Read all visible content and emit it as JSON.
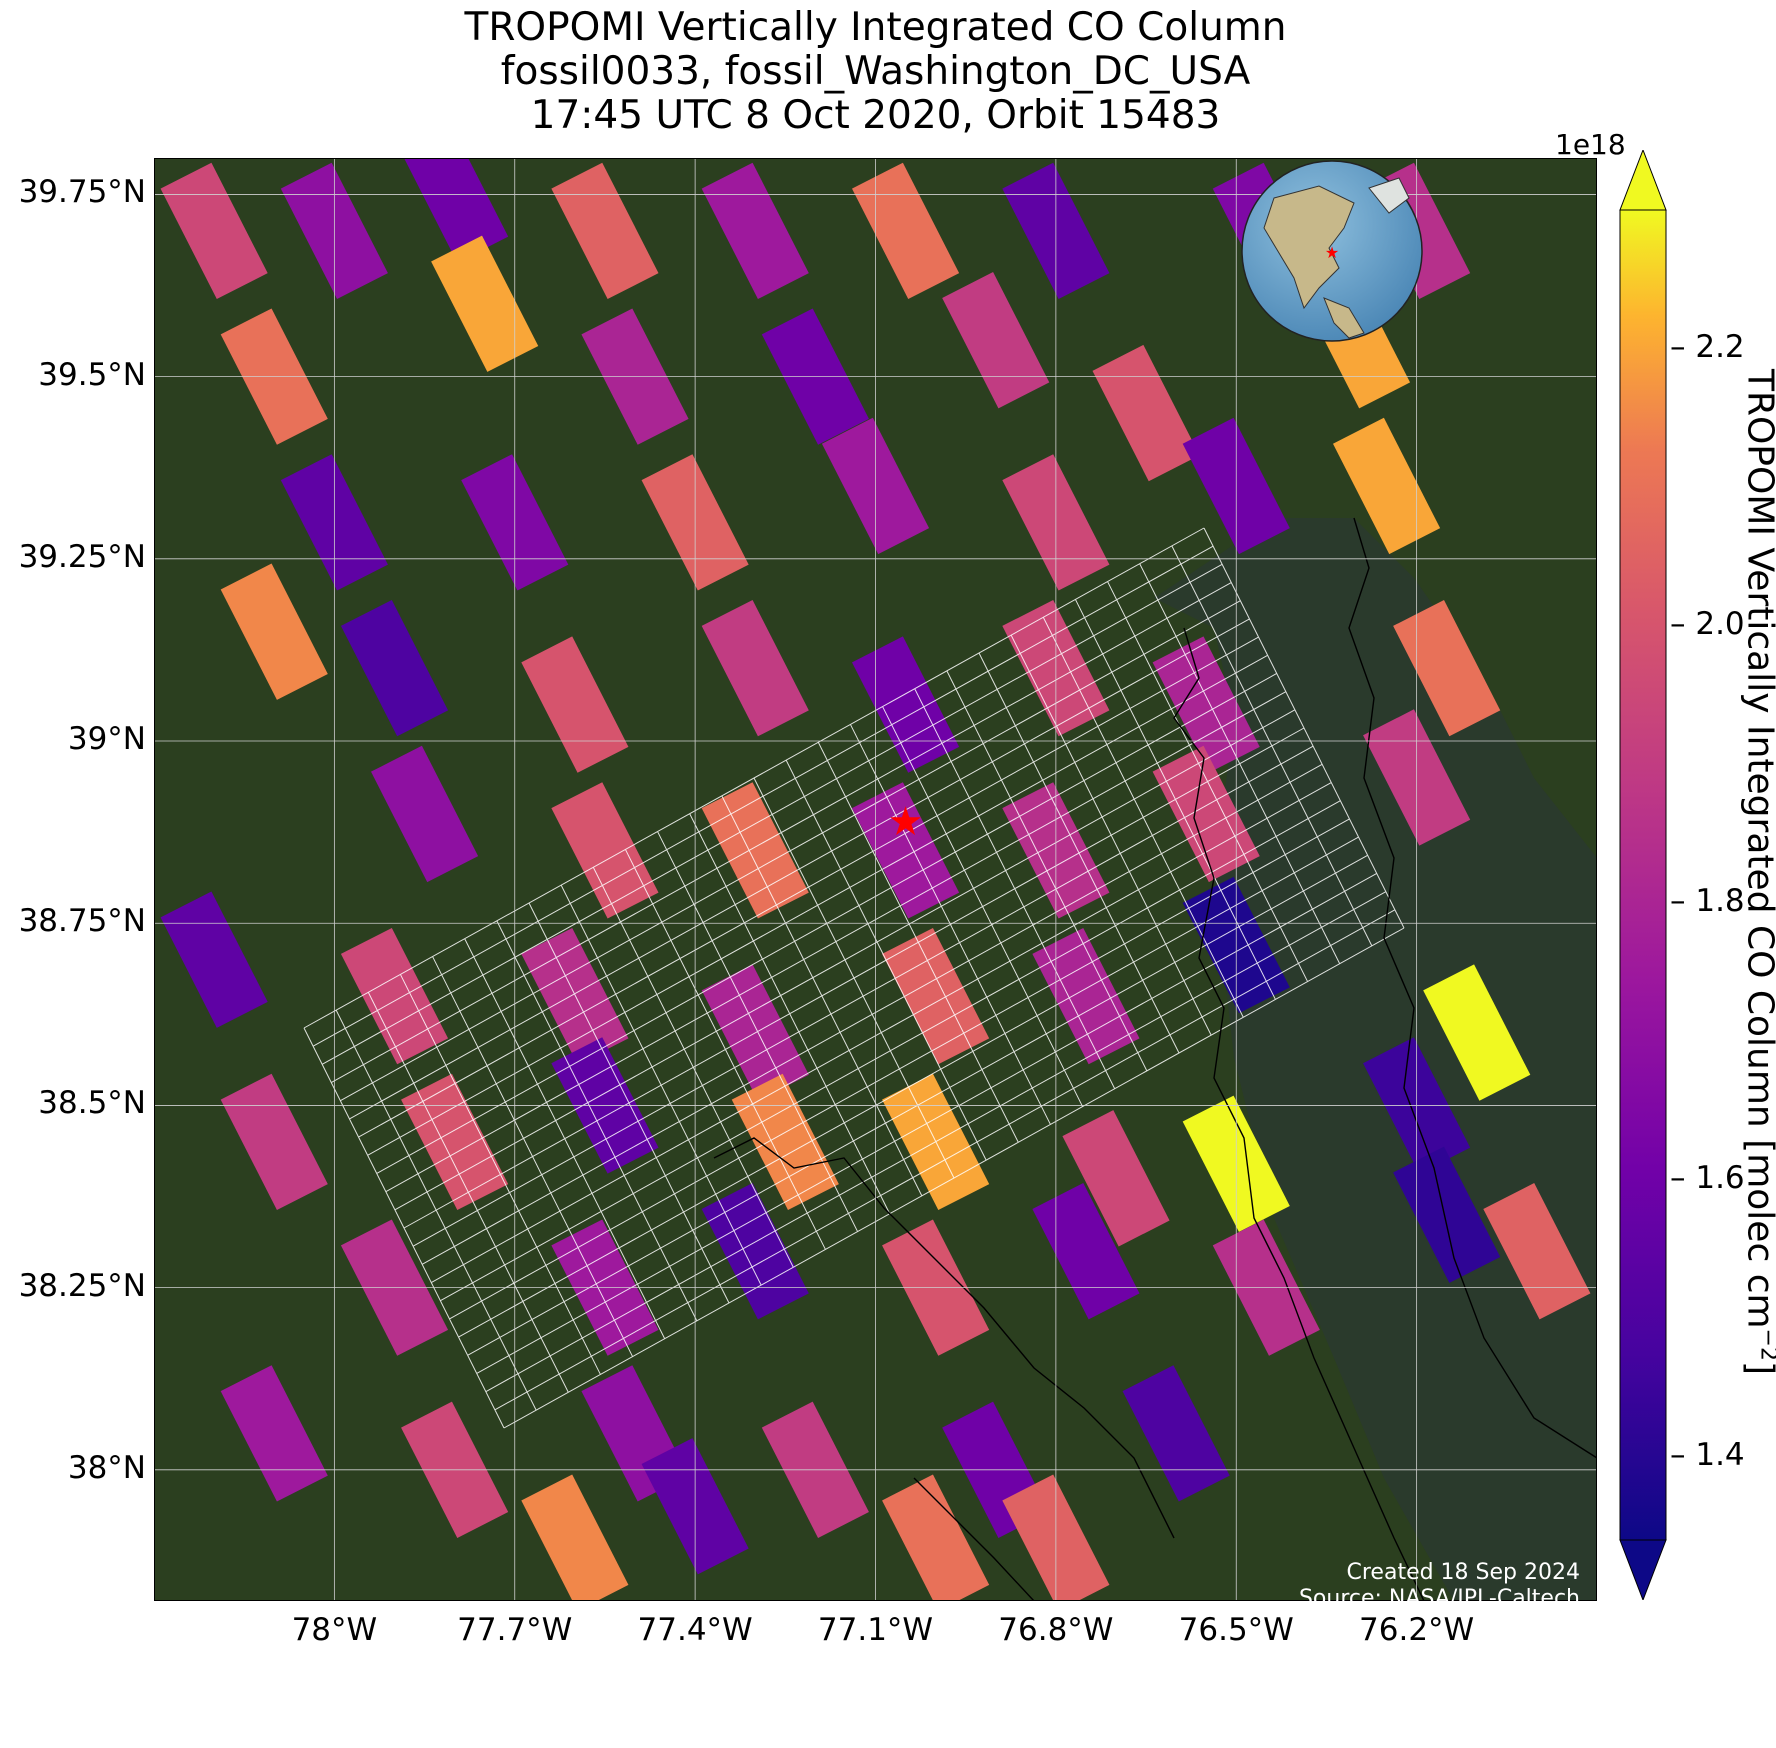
{
  "title": {
    "line1": "TROPOMI Vertically Integrated CO Column",
    "line2": "fossil0033, fossil_Washington_DC_USA",
    "line3": "17:45 UTC 8 Oct 2020, Orbit 15483"
  },
  "axes": {
    "lat_ticks": [
      {
        "value": 39.75,
        "label": "39.75°N"
      },
      {
        "value": 39.5,
        "label": "39.5°N"
      },
      {
        "value": 39.25,
        "label": "39.25°N"
      },
      {
        "value": 39.0,
        "label": "39°N"
      },
      {
        "value": 38.75,
        "label": "38.75°N"
      },
      {
        "value": 38.5,
        "label": "38.5°N"
      },
      {
        "value": 38.25,
        "label": "38.25°N"
      },
      {
        "value": 38.0,
        "label": "38°N"
      }
    ],
    "lon_ticks": [
      {
        "value": -78.0,
        "label": "78°W"
      },
      {
        "value": -77.7,
        "label": "77.7°W"
      },
      {
        "value": -77.4,
        "label": "77.4°W"
      },
      {
        "value": -77.1,
        "label": "77.1°W"
      },
      {
        "value": -76.8,
        "label": "76.8°W"
      },
      {
        "value": -76.5,
        "label": "76.5°W"
      },
      {
        "value": -76.2,
        "label": "76.2°W"
      }
    ],
    "lon_range": [
      -78.3,
      -75.9
    ],
    "lat_range": [
      37.82,
      39.8
    ],
    "grid": true
  },
  "site": {
    "name": "fossil_Washington_DC_USA",
    "lon": -77.05,
    "lat": 38.89,
    "marker_color": "#ff0000"
  },
  "colorbar": {
    "label": "TROPOMI Vertically Integrated CO Column [molec cm",
    "label_sup": "−2",
    "label_end": "]",
    "exponent": "1e18",
    "colormap": "plasma",
    "range": [
      1.34,
      2.3
    ],
    "ticks": [
      {
        "value": 1.4,
        "label": "1.4"
      },
      {
        "value": 1.6,
        "label": "1.6"
      },
      {
        "value": 1.8,
        "label": "1.8"
      },
      {
        "value": 2.0,
        "label": "2.0"
      },
      {
        "value": 2.2,
        "label": "2.2"
      }
    ],
    "extend": "both"
  },
  "credits": {
    "created": "Created 18 Sep 2024",
    "source": "Source: NASA/JPL-Caltech"
  },
  "inset_globe": {
    "marker_color": "#ff0000"
  },
  "colors": {
    "land": "#2b3f1f",
    "water": "#2b3b2b",
    "grid": "#d0d0d0",
    "coastline": "#000000",
    "target_grid": "#ffffff"
  },
  "chart_data": {
    "type": "heatmap",
    "title": "TROPOMI Vertically Integrated CO Column",
    "xlabel": "",
    "ylabel": "",
    "units": "molec cm^-2",
    "scale": "1e18",
    "value_range": [
      1.34,
      2.3
    ],
    "pixels": [
      {
        "lon": -78.2,
        "lat": 39.7,
        "value": 1.95
      },
      {
        "lon": -78.0,
        "lat": 39.7,
        "value": 1.7
      },
      {
        "lon": -77.8,
        "lat": 39.75,
        "value": 1.6
      },
      {
        "lon": -77.55,
        "lat": 39.7,
        "value": 2.05
      },
      {
        "lon": -77.3,
        "lat": 39.7,
        "value": 1.75
      },
      {
        "lon": -77.05,
        "lat": 39.7,
        "value": 2.1
      },
      {
        "lon": -76.8,
        "lat": 39.7,
        "value": 1.55
      },
      {
        "lon": -76.45,
        "lat": 39.7,
        "value": 1.65
      },
      {
        "lon": -76.2,
        "lat": 39.7,
        "value": 1.85
      },
      {
        "lon": -78.1,
        "lat": 39.5,
        "value": 2.1
      },
      {
        "lon": -77.75,
        "lat": 39.6,
        "value": 2.2
      },
      {
        "lon": -77.5,
        "lat": 39.5,
        "value": 1.8
      },
      {
        "lon": -77.2,
        "lat": 39.5,
        "value": 1.6
      },
      {
        "lon": -76.9,
        "lat": 39.55,
        "value": 1.9
      },
      {
        "lon": -76.65,
        "lat": 39.45,
        "value": 2.0
      },
      {
        "lon": -76.3,
        "lat": 39.55,
        "value": 2.2
      },
      {
        "lon": -78.0,
        "lat": 39.3,
        "value": 1.55
      },
      {
        "lon": -77.7,
        "lat": 39.3,
        "value": 1.65
      },
      {
        "lon": -77.4,
        "lat": 39.3,
        "value": 2.05
      },
      {
        "lon": -77.1,
        "lat": 39.35,
        "value": 1.75
      },
      {
        "lon": -76.8,
        "lat": 39.3,
        "value": 1.95
      },
      {
        "lon": -76.5,
        "lat": 39.35,
        "value": 1.6
      },
      {
        "lon": -76.25,
        "lat": 39.35,
        "value": 2.2
      },
      {
        "lon": -78.1,
        "lat": 39.15,
        "value": 2.15
      },
      {
        "lon": -77.9,
        "lat": 39.1,
        "value": 1.5
      },
      {
        "lon": -77.6,
        "lat": 39.05,
        "value": 2.0
      },
      {
        "lon": -77.3,
        "lat": 39.1,
        "value": 1.9
      },
      {
        "lon": -77.05,
        "lat": 39.05,
        "value": 1.6
      },
      {
        "lon": -76.8,
        "lat": 39.1,
        "value": 1.95
      },
      {
        "lon": -76.55,
        "lat": 39.05,
        "value": 1.8
      },
      {
        "lon": -76.15,
        "lat": 39.1,
        "value": 2.1
      },
      {
        "lon": -77.85,
        "lat": 38.9,
        "value": 1.7
      },
      {
        "lon": -77.55,
        "lat": 38.85,
        "value": 2.0
      },
      {
        "lon": -77.3,
        "lat": 38.85,
        "value": 2.1
      },
      {
        "lon": -77.05,
        "lat": 38.85,
        "value": 1.75
      },
      {
        "lon": -76.8,
        "lat": 38.85,
        "value": 1.85
      },
      {
        "lon": -76.55,
        "lat": 38.9,
        "value": 1.95
      },
      {
        "lon": -76.2,
        "lat": 38.95,
        "value": 1.9
      },
      {
        "lon": -78.2,
        "lat": 38.7,
        "value": 1.55
      },
      {
        "lon": -77.9,
        "lat": 38.65,
        "value": 1.95
      },
      {
        "lon": -77.6,
        "lat": 38.65,
        "value": 1.85
      },
      {
        "lon": -77.3,
        "lat": 38.6,
        "value": 1.8
      },
      {
        "lon": -77.0,
        "lat": 38.65,
        "value": 2.05
      },
      {
        "lon": -76.75,
        "lat": 38.65,
        "value": 1.8
      },
      {
        "lon": -76.5,
        "lat": 38.72,
        "value": 1.38
      },
      {
        "lon": -76.1,
        "lat": 38.6,
        "value": 2.3
      },
      {
        "lon": -78.1,
        "lat": 38.45,
        "value": 1.9
      },
      {
        "lon": -77.8,
        "lat": 38.45,
        "value": 2.0
      },
      {
        "lon": -77.55,
        "lat": 38.5,
        "value": 1.55
      },
      {
        "lon": -77.25,
        "lat": 38.45,
        "value": 2.15
      },
      {
        "lon": -77.0,
        "lat": 38.45,
        "value": 2.2
      },
      {
        "lon": -76.7,
        "lat": 38.4,
        "value": 1.95
      },
      {
        "lon": -76.5,
        "lat": 38.42,
        "value": 2.3
      },
      {
        "lon": -76.2,
        "lat": 38.5,
        "value": 1.45
      },
      {
        "lon": -76.15,
        "lat": 38.35,
        "value": 1.42
      },
      {
        "lon": -77.9,
        "lat": 38.25,
        "value": 1.85
      },
      {
        "lon": -77.55,
        "lat": 38.25,
        "value": 1.75
      },
      {
        "lon": -77.3,
        "lat": 38.3,
        "value": 1.5
      },
      {
        "lon": -77.0,
        "lat": 38.25,
        "value": 2.0
      },
      {
        "lon": -76.75,
        "lat": 38.3,
        "value": 1.6
      },
      {
        "lon": -76.45,
        "lat": 38.25,
        "value": 1.85
      },
      {
        "lon": -76.0,
        "lat": 38.3,
        "value": 2.05
      },
      {
        "lon": -78.1,
        "lat": 38.05,
        "value": 1.75
      },
      {
        "lon": -77.8,
        "lat": 38.0,
        "value": 1.95
      },
      {
        "lon": -77.5,
        "lat": 38.05,
        "value": 1.7
      },
      {
        "lon": -77.2,
        "lat": 38.0,
        "value": 1.9
      },
      {
        "lon": -76.9,
        "lat": 38.0,
        "value": 1.6
      },
      {
        "lon": -76.6,
        "lat": 38.05,
        "value": 1.5
      },
      {
        "lon": -77.6,
        "lat": 37.9,
        "value": 2.15
      },
      {
        "lon": -77.0,
        "lat": 37.9,
        "value": 2.1
      },
      {
        "lon": -76.8,
        "lat": 37.9,
        "value": 2.05
      },
      {
        "lon": -77.4,
        "lat": 37.95,
        "value": 1.55
      }
    ]
  }
}
